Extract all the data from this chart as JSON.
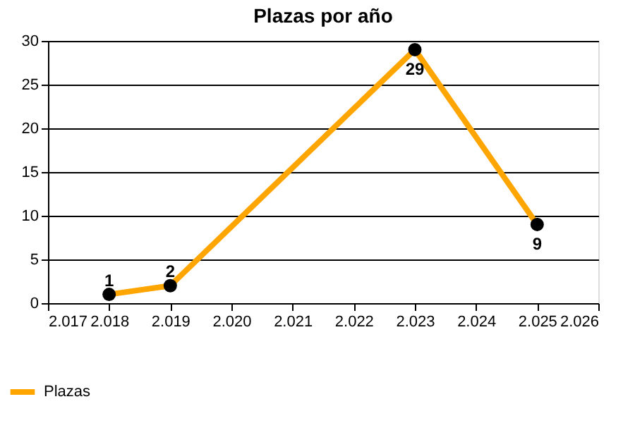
{
  "chart_data": {
    "type": "line",
    "title": "Plazas por año",
    "x": [
      2018,
      2019,
      2023,
      2025
    ],
    "series": [
      {
        "name": "Plazas",
        "color": "#ffa500",
        "values": [
          1,
          2,
          29,
          9
        ]
      }
    ],
    "xlim": [
      2017,
      2026
    ],
    "xticks": [
      {
        "value": 2017,
        "label": "2.017"
      },
      {
        "value": 2018,
        "label": "2.018"
      },
      {
        "value": 2019,
        "label": "2.019"
      },
      {
        "value": 2020,
        "label": "2.020"
      },
      {
        "value": 2021,
        "label": "2.021"
      },
      {
        "value": 2022,
        "label": "2.022"
      },
      {
        "value": 2023,
        "label": "2.023"
      },
      {
        "value": 2024,
        "label": "2.024"
      },
      {
        "value": 2025,
        "label": "2.025"
      },
      {
        "value": 2026,
        "label": "2.026"
      }
    ],
    "ylim": [
      0,
      30
    ],
    "yticks": [
      0,
      5,
      10,
      15,
      20,
      25,
      30
    ],
    "grid": "y",
    "legend": "bottom left",
    "marker": "circle",
    "line_style": "solid",
    "data_labels": true
  }
}
